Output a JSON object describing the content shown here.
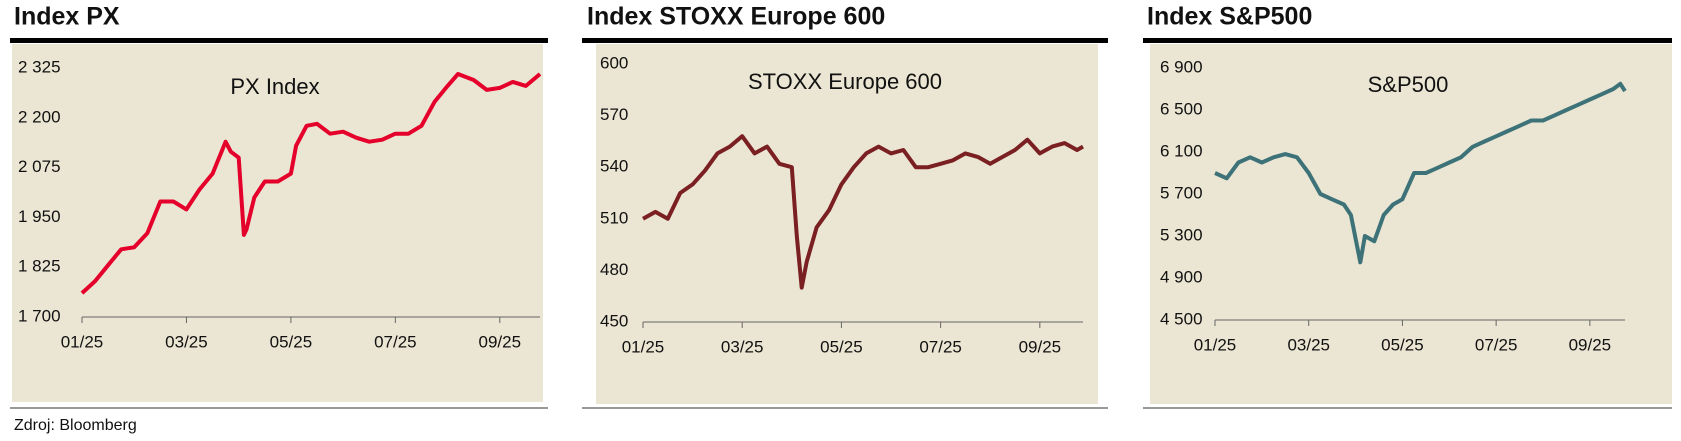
{
  "source": "Zdroj: Bloomberg",
  "chart_data": [
    {
      "type": "line",
      "title": "Index PX",
      "annotation": "PX Index",
      "color": "#e4002b",
      "x": [
        1,
        1.25,
        1.5,
        1.75,
        2,
        2.25,
        2.5,
        2.75,
        3,
        3.25,
        3.5,
        3.75,
        3.85,
        4,
        4.1,
        4.15,
        4.3,
        4.5,
        4.75,
        5,
        5.1,
        5.3,
        5.5,
        5.75,
        6,
        6.25,
        6.5,
        6.75,
        7,
        7.25,
        7.5,
        7.75,
        8,
        8.2,
        8.5,
        8.75,
        9,
        9.25,
        9.5,
        9.77
      ],
      "values": [
        1760,
        1790,
        1830,
        1870,
        1875,
        1910,
        1990,
        1990,
        1970,
        2020,
        2060,
        2140,
        2115,
        2100,
        1906,
        1920,
        2000,
        2040,
        2040,
        2060,
        2130,
        2180,
        2185,
        2160,
        2165,
        2150,
        2140,
        2145,
        2160,
        2160,
        2180,
        2240,
        2280,
        2310,
        2295,
        2270,
        2275,
        2290,
        2280,
        2310
      ],
      "xlim": [
        1,
        9.77
      ],
      "xticks": [
        {
          "value": 1,
          "label": "01/25"
        },
        {
          "value": 3,
          "label": "03/25"
        },
        {
          "value": 5,
          "label": "05/25"
        },
        {
          "value": 7,
          "label": "07/25"
        },
        {
          "value": 9,
          "label": "09/25"
        }
      ],
      "ylim": [
        1700,
        2325
      ],
      "yticks": [
        {
          "value": 1700,
          "label": "1 700"
        },
        {
          "value": 1825,
          "label": "1 825"
        },
        {
          "value": 1950,
          "label": "1 950"
        },
        {
          "value": 2075,
          "label": "2 075"
        },
        {
          "value": 2200,
          "label": "2 200"
        },
        {
          "value": 2325,
          "label": "2 325"
        }
      ]
    },
    {
      "type": "line",
      "title": "Index STOXX Europe 600",
      "annotation": "STOXX Europe 600",
      "color": "#7a1f22",
      "x": [
        1,
        1.25,
        1.5,
        1.75,
        2,
        2.25,
        2.5,
        2.75,
        3,
        3.25,
        3.5,
        3.75,
        4,
        4.1,
        4.2,
        4.3,
        4.5,
        4.75,
        5,
        5.25,
        5.5,
        5.75,
        6,
        6.25,
        6.5,
        6.75,
        7,
        7.25,
        7.5,
        7.75,
        8,
        8.25,
        8.5,
        8.75,
        9,
        9.25,
        9.5,
        9.75,
        9.87
      ],
      "values": [
        510,
        514,
        510,
        525,
        530,
        538,
        548,
        552,
        558,
        548,
        552,
        542,
        540,
        500,
        470,
        485,
        505,
        515,
        530,
        540,
        548,
        552,
        548,
        550,
        540,
        540,
        542,
        544,
        548,
        546,
        542,
        546,
        550,
        556,
        548,
        552,
        554,
        550,
        552
      ],
      "xlim": [
        1,
        9.87
      ],
      "xticks": [
        {
          "value": 1,
          "label": "01/25"
        },
        {
          "value": 3,
          "label": "03/25"
        },
        {
          "value": 5,
          "label": "05/25"
        },
        {
          "value": 7,
          "label": "07/25"
        },
        {
          "value": 9,
          "label": "09/25"
        }
      ],
      "ylim": [
        450,
        600
      ],
      "yticks": [
        450,
        480,
        510,
        540,
        570,
        600
      ]
    },
    {
      "type": "line",
      "title": "Index S&P500",
      "annotation": "S&P500",
      "color": "#3d7278",
      "x": [
        1,
        1.25,
        1.5,
        1.75,
        2,
        2.25,
        2.5,
        2.75,
        3,
        3.25,
        3.5,
        3.75,
        3.9,
        4.1,
        4.2,
        4.4,
        4.6,
        4.8,
        5,
        5.25,
        5.5,
        5.75,
        6,
        6.25,
        6.5,
        6.75,
        7,
        7.25,
        7.5,
        7.75,
        8,
        8.25,
        8.5,
        8.75,
        9,
        9.25,
        9.5,
        9.65,
        9.75
      ],
      "values": [
        5900,
        5850,
        6000,
        6050,
        6000,
        6050,
        6080,
        6050,
        5900,
        5700,
        5650,
        5600,
        5500,
        5050,
        5300,
        5250,
        5500,
        5600,
        5650,
        5900,
        5900,
        5950,
        6000,
        6050,
        6150,
        6200,
        6250,
        6300,
        6350,
        6400,
        6400,
        6450,
        6500,
        6550,
        6600,
        6650,
        6700,
        6750,
        6680
      ],
      "xlim": [
        1,
        9.75
      ],
      "xticks": [
        {
          "value": 1,
          "label": "01/25"
        },
        {
          "value": 3,
          "label": "03/25"
        },
        {
          "value": 5,
          "label": "05/25"
        },
        {
          "value": 7,
          "label": "07/25"
        },
        {
          "value": 9,
          "label": "09/25"
        }
      ],
      "ylim": [
        4500,
        6900
      ],
      "yticks": [
        {
          "value": 4500,
          "label": "4 500"
        },
        {
          "value": 4900,
          "label": "4 900"
        },
        {
          "value": 5300,
          "label": "5 300"
        },
        {
          "value": 5700,
          "label": "5 700"
        },
        {
          "value": 6100,
          "label": "6 100"
        },
        {
          "value": 6500,
          "label": "6 500"
        },
        {
          "value": 6900,
          "label": "6 900"
        }
      ]
    }
  ]
}
